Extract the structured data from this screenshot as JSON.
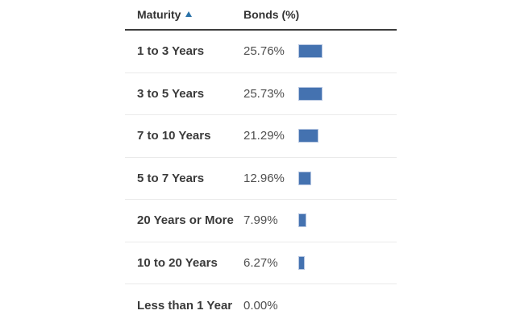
{
  "table": {
    "header": {
      "maturity_label": "Maturity",
      "bonds_label": "Bonds (%)",
      "sort_icon": "sort-ascending-triangle-icon",
      "sort_direction": "ascending"
    },
    "rows": [
      {
        "maturity": "1 to 3 Years",
        "value": "25.76%",
        "pct": 25.76
      },
      {
        "maturity": "3 to 5 Years",
        "value": "25.73%",
        "pct": 25.73
      },
      {
        "maturity": "7 to 10 Years",
        "value": "21.29%",
        "pct": 21.29
      },
      {
        "maturity": "5 to 7 Years",
        "value": "12.96%",
        "pct": 12.96
      },
      {
        "maturity": "20 Years or More",
        "value": "7.99%",
        "pct": 7.99
      },
      {
        "maturity": "10 to 20 Years",
        "value": "6.27%",
        "pct": 6.27
      },
      {
        "maturity": "Less than 1 Year",
        "value": "0.00%",
        "pct": 0.0
      }
    ],
    "colors": {
      "bar_fill": "#4472b0",
      "bar_border": "#b7c7e2",
      "sort_arrow": "#2a72a8",
      "header_rule": "#3d3d3d",
      "row_divider": "#eaeaea",
      "label_text": "#3a3a3a",
      "value_text": "#4f4f4f"
    }
  },
  "chart_data": {
    "type": "bar",
    "orientation": "horizontal",
    "title": "",
    "xlabel": "Bonds (%)",
    "ylabel": "Maturity",
    "categories": [
      "1 to 3 Years",
      "3 to 5 Years",
      "7 to 10 Years",
      "5 to 7 Years",
      "20 Years or More",
      "10 to 20 Years",
      "Less than 1 Year"
    ],
    "values": [
      25.76,
      25.73,
      21.29,
      12.96,
      7.99,
      6.27,
      0.0
    ],
    "value_labels": [
      "25.76%",
      "25.73%",
      "21.29%",
      "12.96%",
      "7.99%",
      "6.27%",
      "0.00%"
    ],
    "xlim": [
      0,
      30
    ],
    "grid": false,
    "legend": false,
    "bar_color": "#4472b0"
  }
}
